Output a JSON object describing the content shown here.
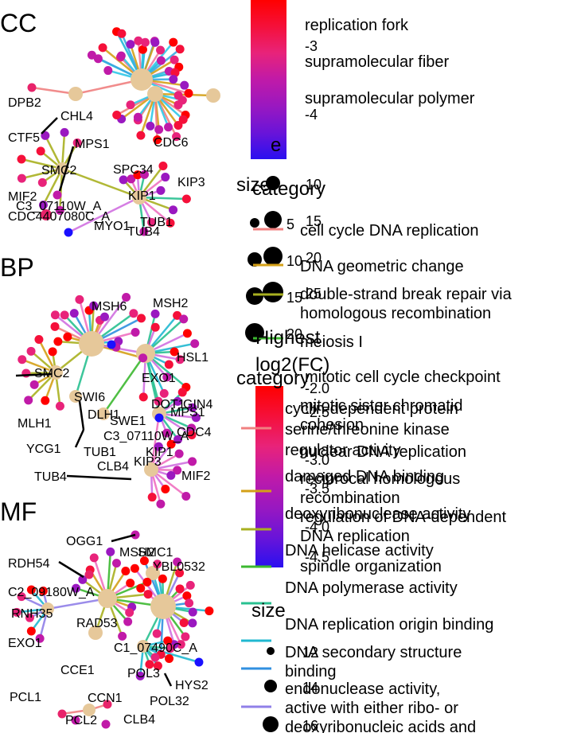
{
  "colors": {
    "high": "#ff0000",
    "mid": "#e8237a",
    "low": "#1a10ff",
    "hub": "#e6c89a",
    "label_line": "#000000"
  },
  "chart_data": [
    {
      "type": "network",
      "title": "CC",
      "genes": [
        "DPB2",
        "CHL4",
        "CTF5",
        "MPS1",
        "CDC6",
        "SMC2",
        "SPC34",
        "KIP3",
        "MIF2",
        "KIP1",
        "C3_07110W_A",
        "CDC4407080C_A",
        "TUB1",
        "MYO1",
        "TUB4"
      ],
      "categories": [
        "replication fork",
        "supramolecular fiber",
        "supramolecular polymer"
      ]
    },
    {
      "type": "network",
      "title": "BP",
      "genes": [
        "MSH6",
        "MSH2",
        "HSL1",
        "SMC2",
        "EXO1",
        "DOT1",
        "GIN4",
        "SWI6",
        "MPS1",
        "DLH1",
        "MLH1",
        "SWE1",
        "CDC4",
        "C3_07110W_A",
        "YCG1",
        "TUB1",
        "KIP1",
        "KIP3",
        "CLB4",
        "TUB4",
        "MIF2"
      ],
      "categories": [
        "cell cycle DNA replication",
        "DNA geometric change",
        "double-strand break repair via homologous recombination",
        "meiosis I",
        "mitotic cell cycle checkpoint",
        "mitotic sister chromatid cohesion",
        "nuclear DNA replication",
        "reciprocal homologous recombination",
        "regulation of DNA-dependent DNA replication",
        "spindle organization"
      ]
    },
    {
      "type": "network",
      "title": "MF",
      "genes": [
        "OGG1",
        "MSH2",
        "SMC1",
        "YBL0532",
        "RDH54",
        "C2_09180W_A",
        "RNH35",
        "RAD53",
        "EXO1",
        "C1_07490C_A",
        "CCE1",
        "POL3",
        "HYS2",
        "POL32",
        "PCL1",
        "CCN1",
        "PCL2",
        "CLB4"
      ],
      "categories": [
        "cyclin-dependent protein serine/threonine kinase regulator activity",
        "damaged DNA binding",
        "deoxyribonuclease activity",
        "DNA helicase activity",
        "DNA polymerase activity",
        "DNA replication origin binding",
        "DNA secondary structure binding",
        "endonuclease activity, active with either ribo- or deoxyribonucleic acids and"
      ]
    }
  ],
  "legend_cc": {
    "color_ticks": [
      "-3",
      "-4"
    ],
    "color_title_fragment": "e",
    "size_title": "size",
    "size_values": [
      "10",
      "15",
      "20",
      "25"
    ],
    "size_values_b": [
      "5",
      "10",
      "15",
      "20"
    ],
    "category_title": "category",
    "category_items": [
      {
        "label": "cell cycle DNA replication",
        "color": "#f08080"
      },
      {
        "label": "DNA geometric change",
        "color": "#d4a017"
      },
      {
        "label": "double-strand break repair via homologous recombination",
        "color": "#a8b020"
      },
      {
        "label": "meiosis I",
        "color": "#3cb830"
      }
    ]
  },
  "legend_bp": {
    "color_title_line1": "Highest",
    "color_title_line2": "log2(FC)",
    "color_ticks": [
      "-2.0",
      "-2.5",
      "-3.0",
      "-3.5",
      "-4.0",
      "-4.5"
    ],
    "category_title": "category",
    "category_items": [
      {
        "label": "mitotic cell cycle checkpoint",
        "color": "#28c090"
      },
      {
        "label": "mitotic sister chromatid cohesion",
        "color": "#20b8d0"
      },
      {
        "label": "nuclear DNA replication",
        "color": "#3090e0"
      },
      {
        "label": "reciprocal homologous recombination",
        "color": "#9080e8"
      },
      {
        "label": "regulation of DNA-dependent DNA replication",
        "color": "#d070e0"
      },
      {
        "label": "spindle organization",
        "color": "#f070c0"
      }
    ]
  },
  "legend_mf": {
    "category_items": [
      {
        "label": "cyclin-dependent protein serine/threonine kinase regulator activity",
        "color": "#f08080"
      },
      {
        "label": "damaged DNA binding",
        "color": "#d4a017"
      },
      {
        "label": "deoxyribonuclease activity",
        "color": "#a8b020"
      },
      {
        "label": "DNA helicase activity",
        "color": "#3cb830"
      },
      {
        "label": "DNA polymerase activity",
        "color": "#28c090"
      },
      {
        "label": "DNA replication origin binding",
        "color": "#20b8d0"
      },
      {
        "label": "DNA secondary structure binding",
        "color": "#3090e0"
      },
      {
        "label": "endonuclease activity, active with either ribo- or deoxyribonucleic acids and",
        "color": "#9080e8"
      }
    ],
    "size_title": "size",
    "size_values": [
      "12",
      "14",
      "16"
    ]
  }
}
